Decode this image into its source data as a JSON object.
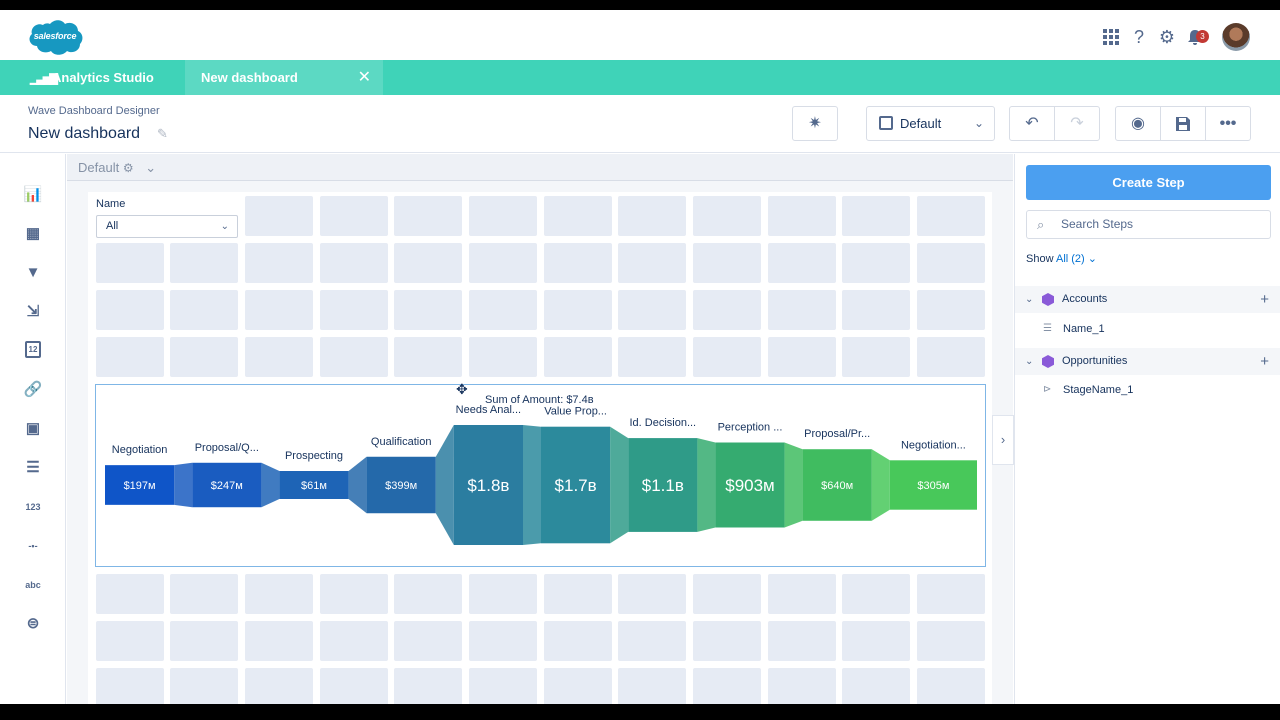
{
  "header": {
    "logo_text": "salesforce",
    "logo_color": "#1798c1",
    "notification_count": "3",
    "icons": [
      "app-launcher-icon",
      "help-icon",
      "setup-gear-icon",
      "notification-bell-icon"
    ]
  },
  "tabs": {
    "app_name": "Analytics Studio",
    "active_tab": "New dashboard",
    "close_glyph": "✕",
    "bar_color": "#3fd3b8"
  },
  "page": {
    "subtitle": "Wave Dashboard Designer",
    "title": "New dashboard",
    "layout_select": "Default"
  },
  "sidebar": {
    "tools": [
      {
        "name": "chart-icon",
        "glyph": "📊"
      },
      {
        "name": "table-icon",
        "glyph": "▦"
      },
      {
        "name": "filter-icon",
        "glyph": "▼"
      },
      {
        "name": "toggle-export-icon",
        "glyph": "⇲"
      },
      {
        "name": "date-icon",
        "glyph": "12"
      },
      {
        "name": "link-icon",
        "glyph": "🔗"
      },
      {
        "name": "image-icon",
        "glyph": "▣"
      },
      {
        "name": "list-icon",
        "glyph": "☰"
      },
      {
        "name": "number-icon",
        "glyph": "123"
      },
      {
        "name": "range-icon",
        "glyph": "-•-"
      },
      {
        "name": "text-icon",
        "glyph": "abc"
      },
      {
        "name": "toggle-icon",
        "glyph": "⊜"
      }
    ]
  },
  "canvas": {
    "layout_label": "Default",
    "filter": {
      "label": "Name",
      "value": "All"
    }
  },
  "chart_data": {
    "type": "funnel",
    "tooltip": "Sum of Amount: $7.4в",
    "categories": [
      "Negotiation",
      "Proposal/Q...",
      "Prospecting",
      "Qualification",
      "Needs Anal...",
      "Value Prop...",
      "Id. Decision...",
      "Perception ...",
      "Proposal/Pr...",
      "Negotiation..."
    ],
    "labels": [
      "$197м",
      "$247м",
      "$61м",
      "$399м",
      "$1.8в",
      "$1.7в",
      "$1.1в",
      "$903м",
      "$640м",
      "$305м"
    ],
    "values": [
      197,
      247,
      61,
      399,
      1800,
      1700,
      1100,
      903,
      640,
      305
    ],
    "unit": "M",
    "colors": [
      "#0f55c8",
      "#1a5cc0",
      "#1e64b6",
      "#2469aa",
      "#2b7da0",
      "#2c8a9c",
      "#2f9b88",
      "#35ab70",
      "#40bc60",
      "#48c85a"
    ]
  },
  "right_panel": {
    "create_button": "Create Step",
    "search_placeholder": "Search Steps",
    "show_label": "Show",
    "show_value": "All (2)",
    "groups": [
      {
        "name": "Accounts",
        "items": [
          "Name_1"
        ]
      },
      {
        "name": "Opportunities",
        "items": [
          "StageName_1"
        ]
      }
    ]
  }
}
